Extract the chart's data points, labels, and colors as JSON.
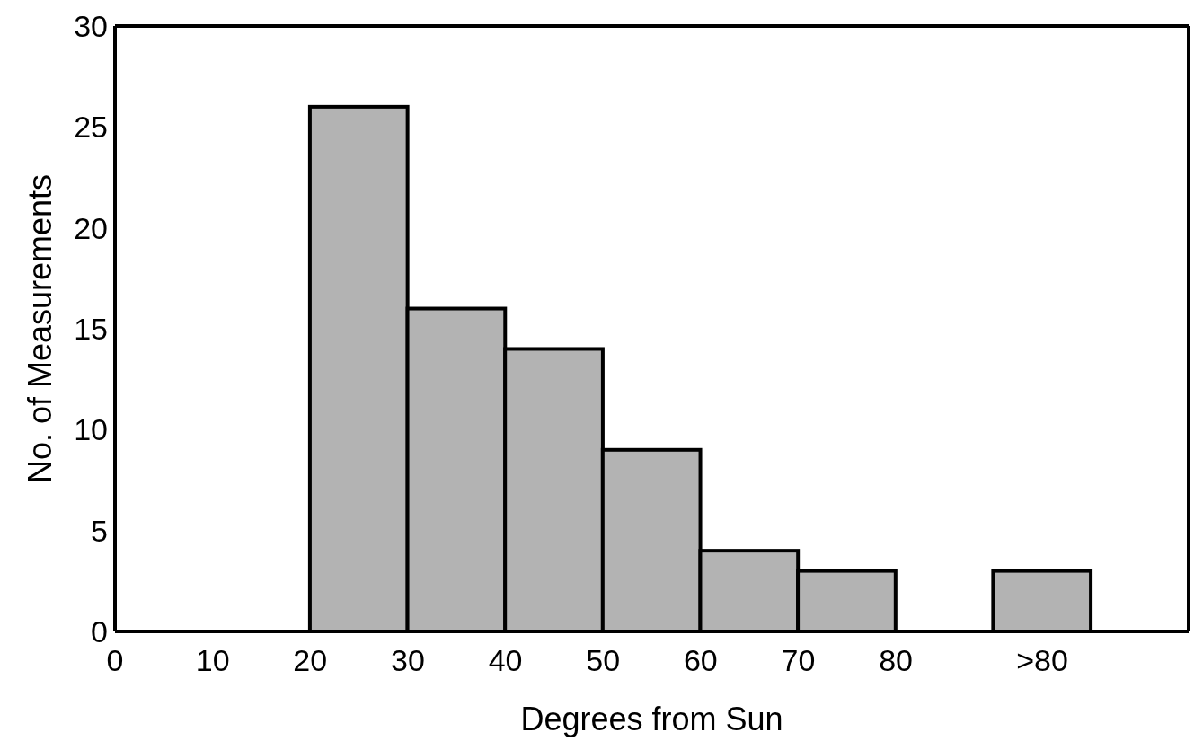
{
  "chart_data": {
    "type": "histogram",
    "xlabel": "Degrees from Sun",
    "ylabel": "No. of Measurements",
    "bins": [
      20,
      30,
      40,
      50,
      60,
      70,
      80,
      90,
      100
    ],
    "values": [
      26,
      16,
      14,
      9,
      4,
      3,
      0,
      3
    ],
    "color": "#b3b3b3",
    "xlim": [
      0,
      110
    ],
    "xticks": [
      0,
      10,
      20,
      30,
      40,
      50,
      60,
      70,
      80,
      {
        "value": 95,
        "label": ">80"
      }
    ],
    "ylim": [
      0,
      30
    ],
    "yticks": [
      0,
      5,
      10,
      15,
      20,
      25,
      30
    ],
    "grid": false,
    "legend": false
  }
}
